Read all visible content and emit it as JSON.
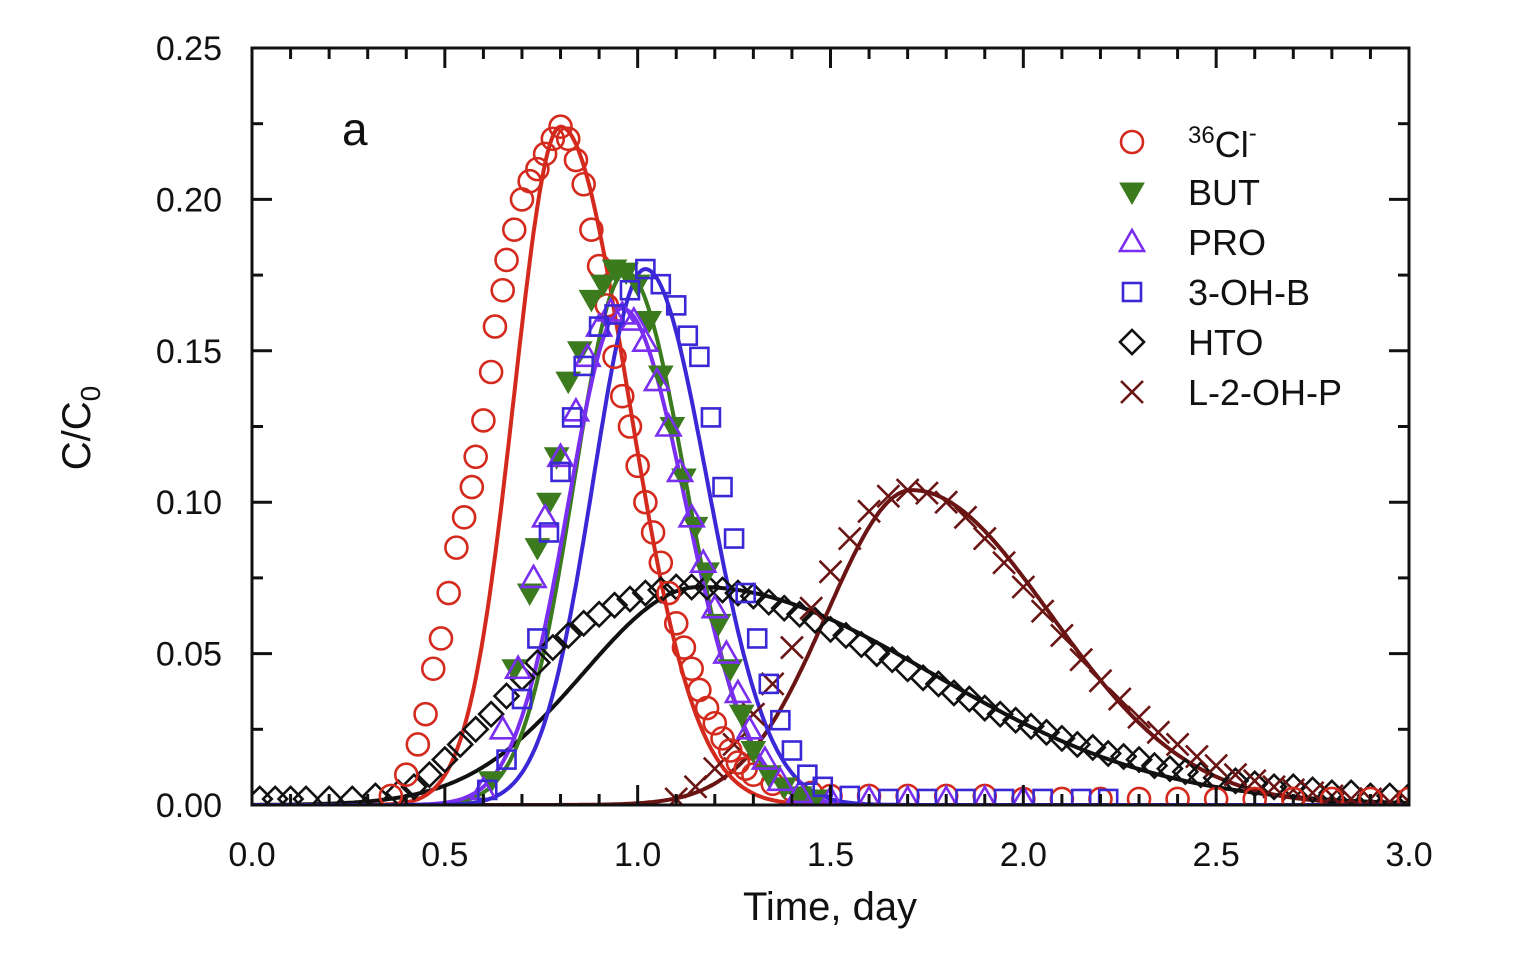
{
  "chart_data": {
    "type": "scatter",
    "panel_label": "a",
    "xlabel": "Time, day",
    "ylabel_main": "C/C",
    "ylabel_sub": "0",
    "xlim": [
      0.0,
      3.0
    ],
    "ylim": [
      0.0,
      0.25
    ],
    "x_ticks": [
      "0.0",
      "0.5",
      "1.0",
      "1.5",
      "2.0",
      "2.5",
      "3.0"
    ],
    "y_ticks": [
      "0.00",
      "0.05",
      "0.10",
      "0.15",
      "0.20",
      "0.25"
    ],
    "grid": false,
    "legend_position": "top-right",
    "legend": [
      {
        "sup": "36",
        "label": "Cl",
        "sup_after": "-"
      },
      {
        "label": "BUT"
      },
      {
        "label": "PRO"
      },
      {
        "label": "3-OH-B"
      },
      {
        "label": "HTO"
      },
      {
        "label": "L-2-OH-P"
      }
    ],
    "series": [
      {
        "name": "36Cl-",
        "marker": "circle-open",
        "color": "#d42a1e",
        "points": [
          [
            0.36,
            0.003
          ],
          [
            0.4,
            0.01
          ],
          [
            0.43,
            0.02
          ],
          [
            0.45,
            0.03
          ],
          [
            0.47,
            0.045
          ],
          [
            0.49,
            0.055
          ],
          [
            0.51,
            0.07
          ],
          [
            0.53,
            0.085
          ],
          [
            0.55,
            0.095
          ],
          [
            0.57,
            0.105
          ],
          [
            0.58,
            0.115
          ],
          [
            0.6,
            0.127
          ],
          [
            0.62,
            0.143
          ],
          [
            0.63,
            0.158
          ],
          [
            0.65,
            0.17
          ],
          [
            0.66,
            0.18
          ],
          [
            0.68,
            0.19
          ],
          [
            0.7,
            0.2
          ],
          [
            0.72,
            0.206
          ],
          [
            0.74,
            0.21
          ],
          [
            0.76,
            0.215
          ],
          [
            0.78,
            0.22
          ],
          [
            0.8,
            0.224
          ],
          [
            0.82,
            0.22
          ],
          [
            0.84,
            0.213
          ],
          [
            0.86,
            0.205
          ],
          [
            0.88,
            0.19
          ],
          [
            0.9,
            0.178
          ],
          [
            0.92,
            0.165
          ],
          [
            0.94,
            0.148
          ],
          [
            0.96,
            0.135
          ],
          [
            0.98,
            0.125
          ],
          [
            1.0,
            0.112
          ],
          [
            1.02,
            0.1
          ],
          [
            1.04,
            0.09
          ],
          [
            1.06,
            0.08
          ],
          [
            1.08,
            0.07
          ],
          [
            1.1,
            0.06
          ],
          [
            1.12,
            0.052
          ],
          [
            1.14,
            0.045
          ],
          [
            1.16,
            0.038
          ],
          [
            1.18,
            0.032
          ],
          [
            1.2,
            0.027
          ],
          [
            1.22,
            0.022
          ],
          [
            1.24,
            0.018
          ],
          [
            1.26,
            0.014
          ],
          [
            1.28,
            0.012
          ],
          [
            1.3,
            0.01
          ],
          [
            1.35,
            0.007
          ],
          [
            1.4,
            0.005
          ],
          [
            1.45,
            0.004
          ],
          [
            1.5,
            0.003
          ],
          [
            1.6,
            0.003
          ],
          [
            1.7,
            0.003
          ],
          [
            1.8,
            0.003
          ],
          [
            1.9,
            0.003
          ],
          [
            2.0,
            0.002
          ],
          [
            2.1,
            0.002
          ],
          [
            2.2,
            0.002
          ],
          [
            2.3,
            0.002
          ],
          [
            2.4,
            0.002
          ],
          [
            2.5,
            0.002
          ],
          [
            2.6,
            0.002
          ],
          [
            2.7,
            0.002
          ],
          [
            2.8,
            0.002
          ],
          [
            2.9,
            0.002
          ],
          [
            3.0,
            0.002
          ]
        ],
        "fit": {
          "peak": 0.224,
          "mode": 0.8,
          "sigma_left": 0.12,
          "sigma_right": 0.175
        }
      },
      {
        "name": "BUT",
        "marker": "triangle-down-filled",
        "color": "#3c7a1e",
        "points": [
          [
            0.62,
            0.008
          ],
          [
            0.68,
            0.045
          ],
          [
            0.72,
            0.07
          ],
          [
            0.74,
            0.085
          ],
          [
            0.77,
            0.1
          ],
          [
            0.79,
            0.115
          ],
          [
            0.82,
            0.14
          ],
          [
            0.85,
            0.15
          ],
          [
            0.88,
            0.167
          ],
          [
            0.91,
            0.172
          ],
          [
            0.94,
            0.177
          ],
          [
            0.97,
            0.176
          ],
          [
            1.0,
            0.172
          ],
          [
            1.03,
            0.16
          ],
          [
            1.06,
            0.142
          ],
          [
            1.09,
            0.125
          ],
          [
            1.12,
            0.108
          ],
          [
            1.15,
            0.092
          ],
          [
            1.18,
            0.077
          ],
          [
            1.21,
            0.06
          ],
          [
            1.24,
            0.045
          ],
          [
            1.27,
            0.03
          ],
          [
            1.3,
            0.018
          ],
          [
            1.34,
            0.01
          ],
          [
            1.38,
            0.006
          ],
          [
            1.42,
            0.003
          ],
          [
            1.46,
            0.002
          ]
        ],
        "fit": {
          "peak": 0.176,
          "mode": 0.97,
          "sigma_left": 0.135,
          "sigma_right": 0.155
        }
      },
      {
        "name": "PRO",
        "marker": "triangle-up-open",
        "color": "#7a2ef0",
        "points": [
          [
            0.6,
            0.005
          ],
          [
            0.65,
            0.025
          ],
          [
            0.69,
            0.045
          ],
          [
            0.73,
            0.075
          ],
          [
            0.76,
            0.095
          ],
          [
            0.8,
            0.115
          ],
          [
            0.84,
            0.13
          ],
          [
            0.87,
            0.148
          ],
          [
            0.9,
            0.158
          ],
          [
            0.93,
            0.163
          ],
          [
            0.96,
            0.162
          ],
          [
            0.99,
            0.16
          ],
          [
            1.02,
            0.153
          ],
          [
            1.05,
            0.14
          ],
          [
            1.08,
            0.125
          ],
          [
            1.11,
            0.11
          ],
          [
            1.14,
            0.095
          ],
          [
            1.17,
            0.08
          ],
          [
            1.2,
            0.065
          ],
          [
            1.23,
            0.05
          ],
          [
            1.26,
            0.037
          ],
          [
            1.29,
            0.025
          ],
          [
            1.33,
            0.015
          ],
          [
            1.37,
            0.008
          ],
          [
            1.42,
            0.004
          ],
          [
            1.5,
            0.002
          ],
          [
            1.6,
            0.002
          ],
          [
            1.7,
            0.002
          ],
          [
            1.8,
            0.002
          ],
          [
            1.9,
            0.002
          ],
          [
            2.0,
            0.002
          ]
        ],
        "fit": {
          "peak": 0.164,
          "mode": 0.96,
          "sigma_left": 0.14,
          "sigma_right": 0.165
        }
      },
      {
        "name": "3-OH-B",
        "marker": "square-open",
        "color": "#3a28d6",
        "points": [
          [
            0.61,
            0.005
          ],
          [
            0.66,
            0.015
          ],
          [
            0.7,
            0.035
          ],
          [
            0.74,
            0.055
          ],
          [
            0.77,
            0.09
          ],
          [
            0.8,
            0.11
          ],
          [
            0.83,
            0.128
          ],
          [
            0.86,
            0.145
          ],
          [
            0.9,
            0.158
          ],
          [
            0.94,
            0.162
          ],
          [
            0.98,
            0.17
          ],
          [
            1.02,
            0.177
          ],
          [
            1.06,
            0.172
          ],
          [
            1.1,
            0.165
          ],
          [
            1.13,
            0.155
          ],
          [
            1.16,
            0.148
          ],
          [
            1.19,
            0.128
          ],
          [
            1.22,
            0.105
          ],
          [
            1.25,
            0.088
          ],
          [
            1.28,
            0.07
          ],
          [
            1.31,
            0.055
          ],
          [
            1.34,
            0.04
          ],
          [
            1.37,
            0.028
          ],
          [
            1.4,
            0.018
          ],
          [
            1.44,
            0.01
          ],
          [
            1.48,
            0.006
          ],
          [
            1.55,
            0.003
          ],
          [
            1.65,
            0.002
          ],
          [
            1.75,
            0.002
          ],
          [
            1.85,
            0.002
          ],
          [
            1.95,
            0.002
          ],
          [
            2.05,
            0.002
          ],
          [
            2.15,
            0.002
          ],
          [
            2.22,
            0.002
          ]
        ],
        "fit": {
          "peak": 0.177,
          "mode": 1.02,
          "sigma_left": 0.135,
          "sigma_right": 0.16
        }
      },
      {
        "name": "HTO",
        "marker": "diamond-open",
        "color": "#111111",
        "points": [
          [
            0.02,
            0.002
          ],
          [
            0.06,
            0.002
          ],
          [
            0.1,
            0.002
          ],
          [
            0.14,
            0.002
          ],
          [
            0.2,
            0.002
          ],
          [
            0.26,
            0.002
          ],
          [
            0.32,
            0.003
          ],
          [
            0.38,
            0.004
          ],
          [
            0.42,
            0.006
          ],
          [
            0.46,
            0.01
          ],
          [
            0.5,
            0.015
          ],
          [
            0.54,
            0.02
          ],
          [
            0.58,
            0.025
          ],
          [
            0.62,
            0.03
          ],
          [
            0.66,
            0.036
          ],
          [
            0.7,
            0.042
          ],
          [
            0.74,
            0.047
          ],
          [
            0.78,
            0.052
          ],
          [
            0.82,
            0.056
          ],
          [
            0.86,
            0.06
          ],
          [
            0.9,
            0.063
          ],
          [
            0.94,
            0.066
          ],
          [
            0.98,
            0.068
          ],
          [
            1.02,
            0.07
          ],
          [
            1.06,
            0.071
          ],
          [
            1.1,
            0.072
          ],
          [
            1.14,
            0.072
          ],
          [
            1.18,
            0.072
          ],
          [
            1.22,
            0.071
          ],
          [
            1.26,
            0.07
          ],
          [
            1.3,
            0.069
          ],
          [
            1.34,
            0.067
          ],
          [
            1.38,
            0.065
          ],
          [
            1.42,
            0.063
          ],
          [
            1.46,
            0.061
          ],
          [
            1.5,
            0.058
          ],
          [
            1.54,
            0.056
          ],
          [
            1.58,
            0.053
          ],
          [
            1.62,
            0.05
          ],
          [
            1.66,
            0.048
          ],
          [
            1.7,
            0.045
          ],
          [
            1.74,
            0.042
          ],
          [
            1.78,
            0.04
          ],
          [
            1.82,
            0.037
          ],
          [
            1.86,
            0.035
          ],
          [
            1.9,
            0.032
          ],
          [
            1.94,
            0.03
          ],
          [
            1.98,
            0.028
          ],
          [
            2.02,
            0.026
          ],
          [
            2.06,
            0.024
          ],
          [
            2.1,
            0.022
          ],
          [
            2.14,
            0.02
          ],
          [
            2.18,
            0.019
          ],
          [
            2.22,
            0.017
          ],
          [
            2.26,
            0.016
          ],
          [
            2.3,
            0.015
          ],
          [
            2.34,
            0.013
          ],
          [
            2.38,
            0.012
          ],
          [
            2.42,
            0.011
          ],
          [
            2.46,
            0.01
          ],
          [
            2.5,
            0.009
          ],
          [
            2.55,
            0.008
          ],
          [
            2.6,
            0.007
          ],
          [
            2.65,
            0.006
          ],
          [
            2.7,
            0.006
          ],
          [
            2.75,
            0.005
          ],
          [
            2.8,
            0.004
          ],
          [
            2.85,
            0.004
          ],
          [
            2.9,
            0.003
          ],
          [
            2.95,
            0.003
          ],
          [
            3.0,
            0.003
          ]
        ],
        "fit": {
          "peak": 0.072,
          "mode": 1.16,
          "sigma_left": 0.3,
          "sigma_right": 0.6
        }
      },
      {
        "name": "L-2-OH-P",
        "marker": "x",
        "color": "#6a1414",
        "points": [
          [
            1.1,
            0.002
          ],
          [
            1.15,
            0.006
          ],
          [
            1.2,
            0.012
          ],
          [
            1.25,
            0.02
          ],
          [
            1.3,
            0.03
          ],
          [
            1.35,
            0.04
          ],
          [
            1.4,
            0.052
          ],
          [
            1.45,
            0.065
          ],
          [
            1.5,
            0.077
          ],
          [
            1.55,
            0.088
          ],
          [
            1.6,
            0.097
          ],
          [
            1.65,
            0.102
          ],
          [
            1.7,
            0.104
          ],
          [
            1.75,
            0.103
          ],
          [
            1.8,
            0.1
          ],
          [
            1.85,
            0.095
          ],
          [
            1.9,
            0.088
          ],
          [
            1.95,
            0.08
          ],
          [
            2.0,
            0.072
          ],
          [
            2.05,
            0.064
          ],
          [
            2.1,
            0.056
          ],
          [
            2.15,
            0.048
          ],
          [
            2.2,
            0.041
          ],
          [
            2.25,
            0.035
          ],
          [
            2.3,
            0.029
          ],
          [
            2.35,
            0.024
          ],
          [
            2.4,
            0.02
          ],
          [
            2.45,
            0.016
          ],
          [
            2.5,
            0.013
          ],
          [
            2.55,
            0.01
          ],
          [
            2.6,
            0.008
          ],
          [
            2.65,
            0.006
          ],
          [
            2.7,
            0.005
          ],
          [
            2.75,
            0.004
          ],
          [
            2.8,
            0.003
          ],
          [
            2.85,
            0.002
          ],
          [
            2.9,
            0.002
          ],
          [
            2.95,
            0.001
          ],
          [
            3.0,
            0.001
          ]
        ],
        "fit": {
          "peak": 0.104,
          "mode": 1.71,
          "sigma_left": 0.22,
          "sigma_right": 0.36
        }
      }
    ]
  }
}
